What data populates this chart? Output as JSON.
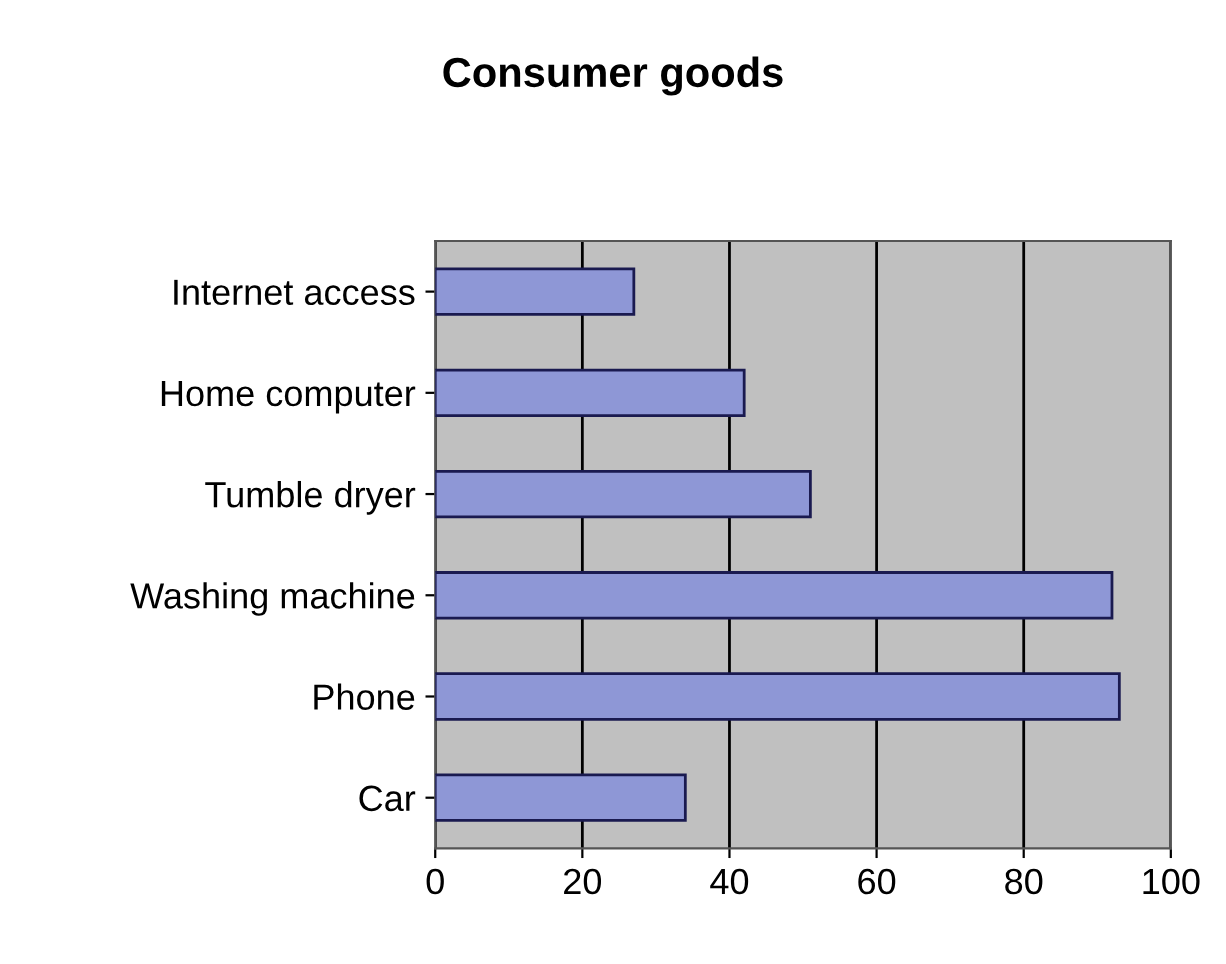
{
  "chart_data": {
    "type": "bar",
    "orientation": "horizontal",
    "title": "Consumer goods",
    "categories": [
      "Internet access",
      "Home computer",
      "Tumble dryer",
      "Washing machine",
      "Phone",
      "Car"
    ],
    "values": [
      27,
      42,
      51,
      92,
      93,
      34
    ],
    "color": "#8e97d6",
    "xlim": [
      0,
      100
    ],
    "xticks": [
      0,
      20,
      40,
      60,
      80,
      100
    ],
    "grid": "x"
  }
}
